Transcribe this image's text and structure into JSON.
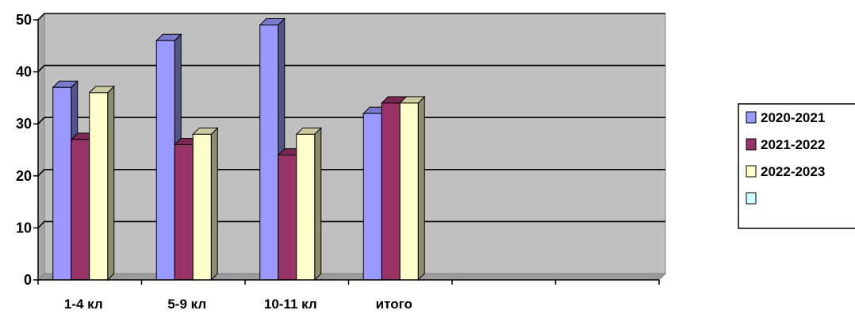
{
  "chart_data": {
    "type": "bar",
    "categories": [
      "1-4 кл",
      "5-9 кл",
      "10-11 кл",
      "итого",
      "",
      ""
    ],
    "series": [
      {
        "name": "2020-2021",
        "values": [
          37,
          46,
          49,
          32,
          null,
          null
        ],
        "color": "#9999FF"
      },
      {
        "name": "2021-2022",
        "values": [
          27,
          26,
          24,
          34,
          null,
          null
        ],
        "color": "#993366"
      },
      {
        "name": "2022-2023",
        "values": [
          36,
          28,
          28,
          34,
          null,
          null
        ],
        "color": "#FFFFCC"
      },
      {
        "name": "",
        "values": [
          null,
          null,
          null,
          null,
          null,
          null
        ],
        "color": "#CCFFFF"
      }
    ],
    "ylim": [
      0,
      50
    ],
    "yticks": [
      0,
      10,
      20,
      30,
      40,
      50
    ],
    "grid": true,
    "plot_background": "#C0C0C0",
    "legend_position": "right",
    "title": "",
    "xlabel": "",
    "ylabel": ""
  }
}
